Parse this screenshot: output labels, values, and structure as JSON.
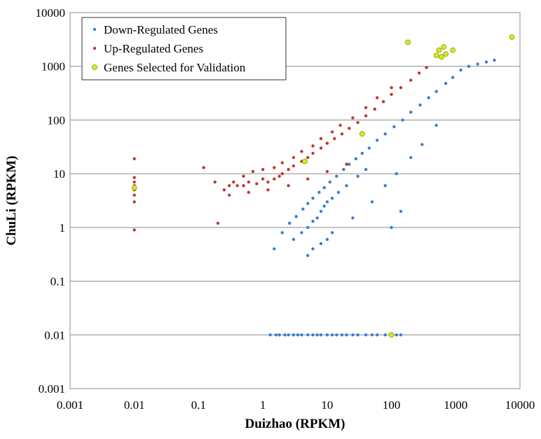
{
  "chart_data": {
    "type": "scatter",
    "xlabel": "Duizhao (RPKM)",
    "ylabel": "ChuLi (RPKM)",
    "xscale": "log",
    "yscale": "log",
    "xlim": [
      0.001,
      10000
    ],
    "ylim": [
      0.001,
      10000
    ],
    "x_tick_labels": [
      "0.001",
      "0.01",
      "0.1",
      "1",
      "10",
      "100",
      "1000",
      "10000"
    ],
    "y_tick_labels": [
      "0.001",
      "0.01",
      "0.1",
      "1",
      "10",
      "100",
      "1000",
      "10000"
    ],
    "grid": "horizontal",
    "legend_position": "top-left",
    "series": [
      {
        "name": "Down-Regulated Genes",
        "color": "#3a7dd1",
        "x": [
          1.5,
          2,
          2.6,
          3.3,
          4.2,
          5,
          6,
          7.5,
          9,
          11,
          14,
          18,
          22,
          28,
          35,
          45,
          60,
          80,
          110,
          150,
          200,
          280,
          380,
          500,
          700,
          900,
          1200,
          1600,
          2200,
          3000,
          4000,
          3,
          4,
          5,
          6,
          7,
          8,
          9,
          10,
          12,
          15,
          20,
          30,
          40,
          5,
          6,
          8,
          10,
          12,
          25,
          50,
          80,
          120,
          200,
          300,
          500,
          100,
          140,
          1.3,
          1.6,
          1.8,
          2.2,
          2.5,
          3,
          3.5,
          4,
          5,
          6,
          7,
          8,
          10,
          12,
          14,
          17,
          20,
          25,
          30,
          40,
          50,
          60,
          80,
          100,
          120,
          140
        ],
        "y": [
          0.4,
          0.8,
          1.2,
          1.6,
          2.2,
          2.8,
          3.5,
          4.5,
          5.5,
          7,
          9,
          12,
          15,
          19,
          24,
          30,
          42,
          55,
          75,
          100,
          140,
          190,
          260,
          340,
          480,
          620,
          850,
          1000,
          1100,
          1200,
          1300,
          0.6,
          0.8,
          1,
          1.3,
          1.5,
          2,
          2.5,
          3,
          3.5,
          4.5,
          6,
          9,
          12,
          0.3,
          0.4,
          0.5,
          0.6,
          0.8,
          1.5,
          3,
          6,
          10,
          20,
          35,
          80,
          1,
          2,
          0.01,
          0.01,
          0.01,
          0.01,
          0.01,
          0.01,
          0.01,
          0.01,
          0.01,
          0.01,
          0.01,
          0.01,
          0.01,
          0.01,
          0.01,
          0.01,
          0.01,
          0.01,
          0.01,
          0.01,
          0.01,
          0.01,
          0.01,
          0.01,
          0.01,
          0.01
        ]
      },
      {
        "name": "Up-Regulated Genes",
        "color": "#c0392b",
        "x": [
          0.01,
          0.01,
          0.01,
          0.01,
          0.01,
          0.01,
          0.01,
          0.01,
          0.01,
          0.12,
          0.18,
          0.2,
          0.25,
          0.3,
          0.35,
          0.4,
          0.5,
          0.6,
          0.8,
          1,
          1.2,
          1.5,
          1.8,
          2,
          2.5,
          3,
          4,
          5,
          6,
          8,
          10,
          13,
          17,
          22,
          30,
          40,
          55,
          75,
          100,
          140,
          200,
          270,
          350,
          0.5,
          0.7,
          1,
          1.5,
          2,
          3,
          4,
          6,
          8,
          12,
          16,
          25,
          40,
          60,
          100,
          0.3,
          0.6,
          1.2,
          2.5,
          5,
          10,
          20
        ],
        "y": [
          19,
          8.5,
          7,
          6,
          5.5,
          5,
          4,
          3,
          0.9,
          13,
          7,
          1.2,
          5,
          6,
          7,
          6,
          6,
          7,
          6.5,
          8,
          7,
          8,
          9,
          10,
          12,
          14,
          17,
          20,
          24,
          30,
          37,
          45,
          55,
          70,
          90,
          120,
          160,
          220,
          300,
          400,
          550,
          750,
          950,
          9,
          11,
          12,
          13,
          16,
          20,
          26,
          33,
          45,
          60,
          80,
          110,
          170,
          260,
          400,
          4,
          4.5,
          5,
          6,
          8,
          11,
          15
        ]
      },
      {
        "name": "Genes Selected for Validation",
        "color": "#d8e81a",
        "x": [
          0.01,
          4.5,
          35,
          100,
          180,
          500,
          550,
          600,
          650,
          700,
          900,
          7500
        ],
        "y": [
          5.5,
          17,
          55,
          0.01,
          2800,
          1600,
          2000,
          1500,
          2300,
          1700,
          2000,
          3500
        ]
      }
    ]
  }
}
